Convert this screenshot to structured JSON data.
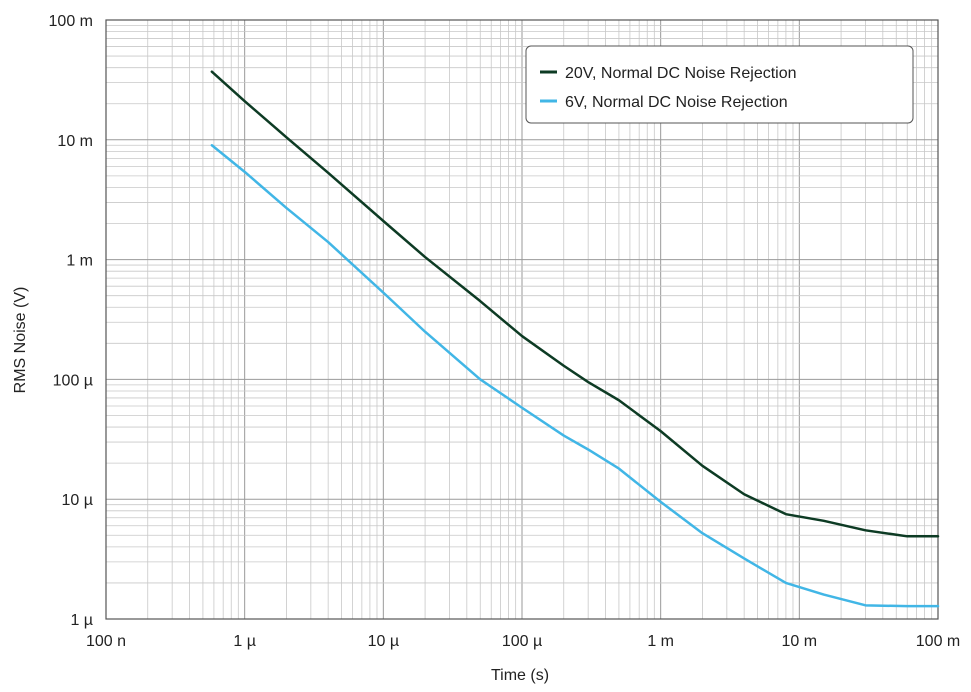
{
  "chart_data": {
    "type": "line",
    "xscale": "log",
    "yscale": "log",
    "xlabel": "Time (s)",
    "ylabel": "RMS Noise (V)",
    "xlim": [
      1e-07,
      0.1
    ],
    "ylim": [
      1e-06,
      0.1
    ],
    "grid": true,
    "legend_position": "top-right",
    "x_ticks": [
      {
        "value": 1e-07,
        "label": "100 n"
      },
      {
        "value": 1e-06,
        "label": "1 µ"
      },
      {
        "value": 1e-05,
        "label": "10 µ"
      },
      {
        "value": 0.0001,
        "label": "100 µ"
      },
      {
        "value": 0.001,
        "label": "1 m"
      },
      {
        "value": 0.01,
        "label": "10 m"
      },
      {
        "value": 0.1,
        "label": "100 m"
      }
    ],
    "y_ticks": [
      {
        "value": 1e-06,
        "label": "1 µ"
      },
      {
        "value": 1e-05,
        "label": "10 µ"
      },
      {
        "value": 0.0001,
        "label": "100 µ"
      },
      {
        "value": 0.001,
        "label": "1 m"
      },
      {
        "value": 0.01,
        "label": "10 m"
      },
      {
        "value": 0.1,
        "label": "100 m"
      }
    ],
    "series": [
      {
        "name": "20V, Normal DC Noise Rejection",
        "color": "#0d3b24",
        "points": [
          [
            5.8e-07,
            0.037
          ],
          [
            1e-06,
            0.021
          ],
          [
            2e-06,
            0.0105
          ],
          [
            4e-06,
            0.0053
          ],
          [
            1e-05,
            0.0021
          ],
          [
            2e-05,
            0.00105
          ],
          [
            5e-05,
            0.00045
          ],
          [
            0.0001,
            0.00023
          ],
          [
            0.0002,
            0.00013
          ],
          [
            0.0003,
            9.5e-05
          ],
          [
            0.0005,
            6.7e-05
          ],
          [
            0.001,
            3.7e-05
          ],
          [
            0.002,
            1.9e-05
          ],
          [
            0.004,
            1.1e-05
          ],
          [
            0.008,
            7.5e-06
          ],
          [
            0.015,
            6.6e-06
          ],
          [
            0.03,
            5.5e-06
          ],
          [
            0.06,
            4.9e-06
          ],
          [
            0.1,
            4.9e-06
          ]
        ]
      },
      {
        "name": "6V, Normal DC Noise Rejection",
        "color": "#41b6e6",
        "points": [
          [
            5.8e-07,
            0.009
          ],
          [
            1e-06,
            0.0054
          ],
          [
            2e-06,
            0.0027
          ],
          [
            4e-06,
            0.0014
          ],
          [
            1e-05,
            0.00053
          ],
          [
            2e-05,
            0.00025
          ],
          [
            5e-05,
            0.0001
          ],
          [
            0.0001,
            5.8e-05
          ],
          [
            0.0002,
            3.4e-05
          ],
          [
            0.0003,
            2.6e-05
          ],
          [
            0.0005,
            1.8e-05
          ],
          [
            0.001,
            9.5e-06
          ],
          [
            0.002,
            5.2e-06
          ],
          [
            0.004,
            3.2e-06
          ],
          [
            0.008,
            2e-06
          ],
          [
            0.015,
            1.6e-06
          ],
          [
            0.03,
            1.3e-06
          ],
          [
            0.06,
            1.28e-06
          ],
          [
            0.1,
            1.28e-06
          ]
        ]
      }
    ]
  }
}
